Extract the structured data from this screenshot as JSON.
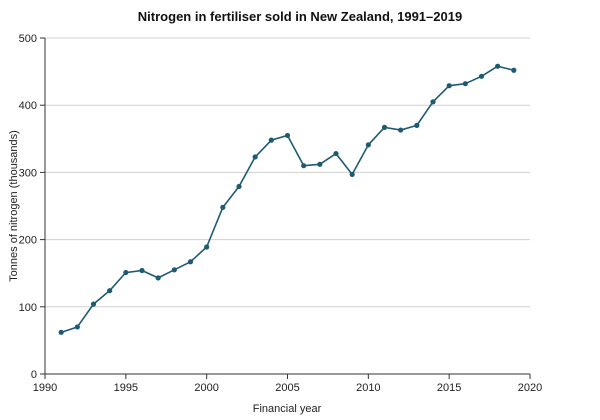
{
  "chart_data": {
    "type": "line",
    "title": "Nitrogen in fertiliser sold in New Zealand, 1991–2019",
    "xlabel": "Financial year",
    "ylabel": "Tonnes of nitrogen (thousands)",
    "xlim": [
      1990,
      2020
    ],
    "ylim": [
      0,
      500
    ],
    "x_ticks": [
      1990,
      1995,
      2000,
      2005,
      2010,
      2015,
      2020
    ],
    "y_ticks": [
      0,
      100,
      200,
      300,
      400,
      500
    ],
    "grid": "horizontal",
    "legend": "none",
    "series": [
      {
        "color": "#1f5a73",
        "x": [
          1991,
          1992,
          1993,
          1994,
          1995,
          1996,
          1997,
          1998,
          1999,
          2000,
          2001,
          2002,
          2003,
          2004,
          2005,
          2006,
          2007,
          2008,
          2009,
          2010,
          2011,
          2012,
          2013,
          2014,
          2015,
          2016,
          2017,
          2018,
          2019
        ],
        "values": [
          62,
          70,
          104,
          124,
          151,
          154,
          143,
          155,
          167,
          189,
          248,
          279,
          323,
          348,
          355,
          310,
          312,
          328,
          297,
          341,
          367,
          363,
          370,
          405,
          429,
          432,
          443,
          458,
          452
        ]
      }
    ]
  }
}
